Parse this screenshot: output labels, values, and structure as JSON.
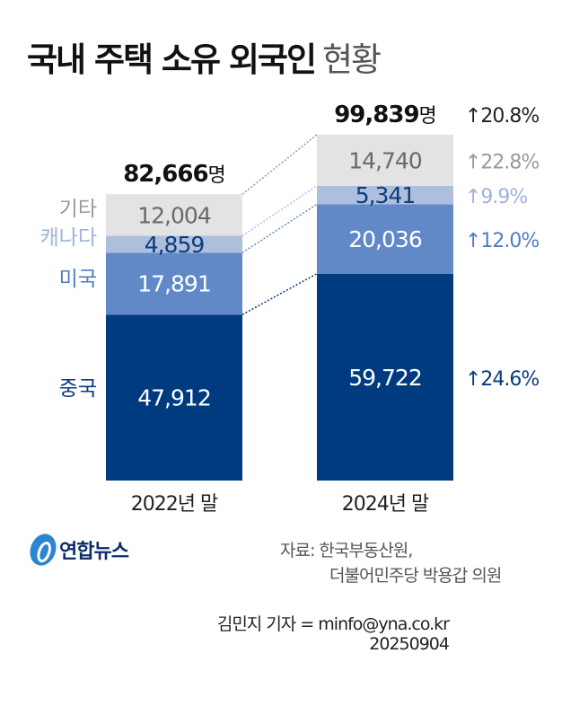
{
  "title": {
    "main": "국내 주택 소유 외국인",
    "sub": "현황"
  },
  "chart_data": {
    "type": "bar",
    "stacked": true,
    "categories": [
      "2022년 말",
      "2024년 말"
    ],
    "series": [
      {
        "name": "중국",
        "values": [
          47912,
          59722
        ],
        "change": "↑24.6%",
        "color": "#003b80",
        "label_color": "#0b3d7e",
        "value_color": "#ffffff"
      },
      {
        "name": "미국",
        "values": [
          17891,
          20036
        ],
        "change": "↑12.0%",
        "color": "#6189c8",
        "label_color": "#4f7dc3",
        "value_color": "#ffffff"
      },
      {
        "name": "캐나다",
        "values": [
          4859,
          5341
        ],
        "change": "↑9.9%",
        "color": "#aebfdd",
        "label_color": "#9fb3d8",
        "value_color": "#0b3d7e"
      },
      {
        "name": "기타",
        "values": [
          12004,
          14740
        ],
        "change": "↑22.8%",
        "color": "#e3e3e3",
        "label_color": "#9a9a9a",
        "value_color": "#6a6a6a"
      }
    ],
    "value_labels": [
      [
        "47,912",
        "59,722"
      ],
      [
        "17,891",
        "20,036"
      ],
      [
        "4,859",
        "5,341"
      ],
      [
        "12,004",
        "14,740"
      ]
    ],
    "totals": [
      {
        "value": "82,666",
        "unit": "명"
      },
      {
        "value": "99,839",
        "unit": "명"
      }
    ],
    "total_change": "↑20.8%",
    "ylim": [
      0,
      100000
    ]
  },
  "source": {
    "line1": "자료: 한국부동산원,",
    "line2": "더불어민주당 박용갑 의원"
  },
  "credit": {
    "line1": "김민지 기자 = minfo@yna.co.kr",
    "line2": "20250904"
  },
  "logo": {
    "text": "연합뉴스"
  }
}
